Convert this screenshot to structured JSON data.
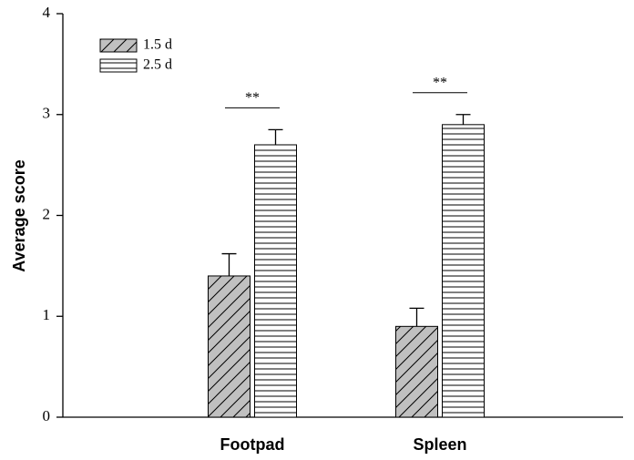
{
  "chart_data": {
    "type": "bar",
    "y_label": "Average score",
    "categories": [
      "Footpad",
      "Spleen"
    ],
    "series": [
      {
        "name": "1.5 d",
        "color": "#c0c0c0",
        "pattern": "diagonal",
        "values": [
          1.4,
          0.9
        ],
        "errors": [
          0.22,
          0.18
        ]
      },
      {
        "name": "2.5 d",
        "color": "#ffffff",
        "pattern": "horizontal",
        "values": [
          2.7,
          2.9
        ],
        "errors": [
          0.15,
          0.1
        ]
      }
    ],
    "significance": [
      "**",
      "**"
    ],
    "ylim": [
      0,
      4
    ],
    "yticks": [
      0,
      1,
      2,
      3,
      4
    ]
  }
}
